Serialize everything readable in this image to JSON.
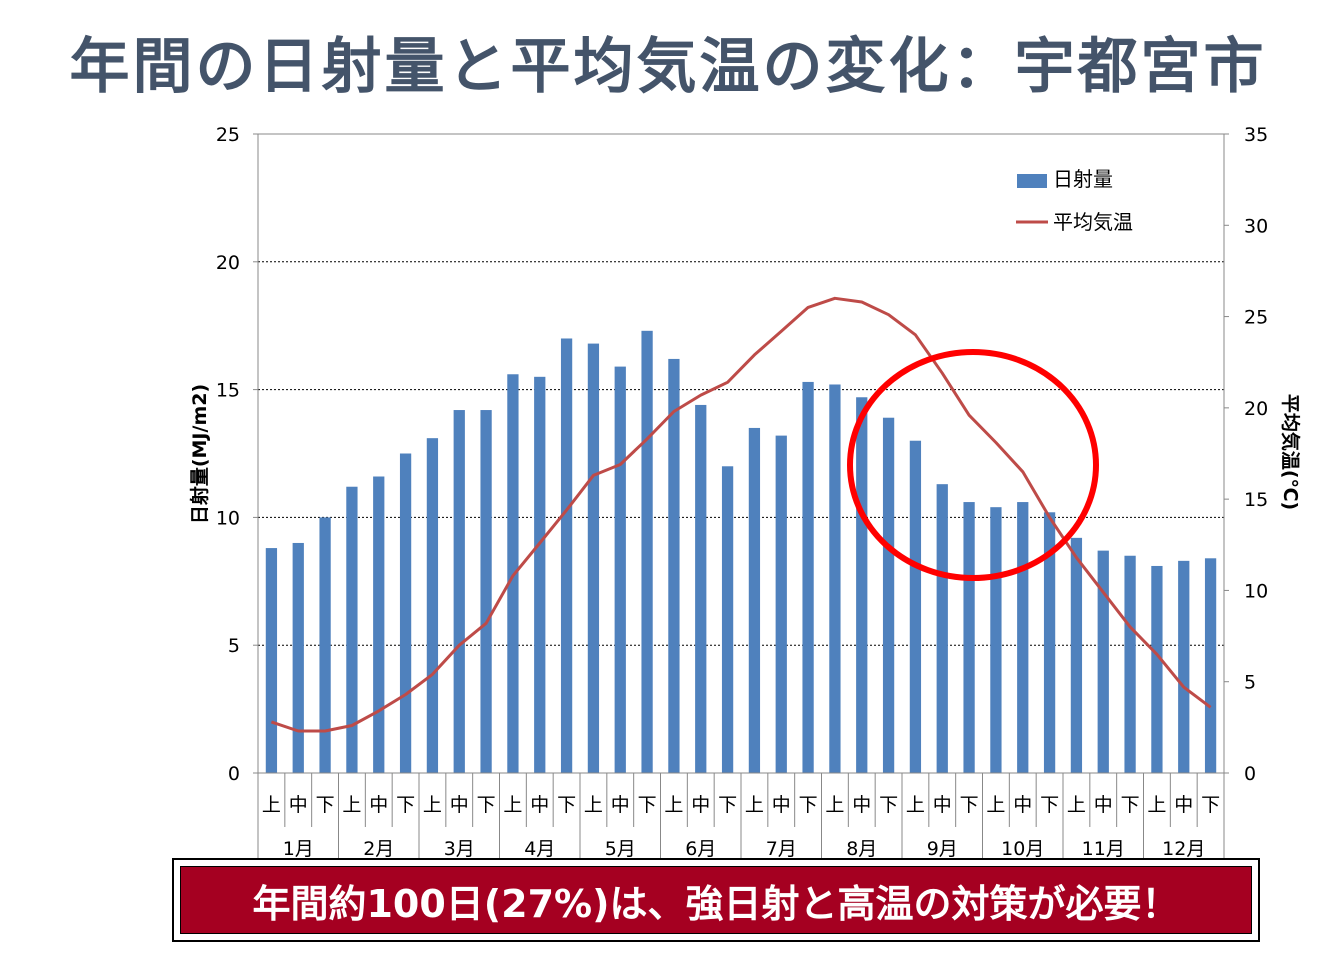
{
  "title": "年間の日射量と平均気温の変化：宇都宮市",
  "banner": "年間約100日(27%)は、強日射と高温の対策が必要！",
  "colors": {
    "title": "#44546a",
    "bar": "#4f81bd",
    "line": "#be4b48",
    "highlight_circle": "#ff0000",
    "banner_bg": "#a50021",
    "banner_text": "#ffffff"
  },
  "chart_data": {
    "type": "bar",
    "ylabel": "日射量(MJ/m2)",
    "y2label": "平均気温(℃)",
    "ylim": [
      0,
      25
    ],
    "y2lim": [
      0,
      35
    ],
    "yticks": [
      0,
      5,
      10,
      15,
      20,
      25
    ],
    "y2ticks": [
      0,
      5,
      10,
      15,
      20,
      25,
      30,
      35
    ],
    "grid": "dashed horizontal",
    "legend_position": "top-right",
    "categories": [
      "上",
      "中",
      "下",
      "上",
      "中",
      "下",
      "上",
      "中",
      "下",
      "上",
      "中",
      "下",
      "上",
      "中",
      "下",
      "上",
      "中",
      "下",
      "上",
      "中",
      "下",
      "上",
      "中",
      "下",
      "上",
      "中",
      "下",
      "上",
      "中",
      "下",
      "上",
      "中",
      "下",
      "上",
      "中",
      "下"
    ],
    "months": [
      "1月",
      "2月",
      "3月",
      "4月",
      "5月",
      "6月",
      "7月",
      "8月",
      "9月",
      "10月",
      "11月",
      "12月"
    ],
    "series": [
      {
        "name": "日射量",
        "kind": "bar",
        "axis": "left",
        "values": [
          8.8,
          9.0,
          10.0,
          11.2,
          11.6,
          12.5,
          13.1,
          14.2,
          14.2,
          15.6,
          15.5,
          17.0,
          16.8,
          15.9,
          17.3,
          16.2,
          14.4,
          12.0,
          13.5,
          13.2,
          15.3,
          15.2,
          14.7,
          13.9,
          13.0,
          11.3,
          10.6,
          10.4,
          10.6,
          10.2,
          9.2,
          8.7,
          8.5,
          8.1,
          8.3,
          8.4
        ]
      },
      {
        "name": "平均気温",
        "kind": "line",
        "axis": "right",
        "values": [
          2.8,
          2.3,
          2.3,
          2.6,
          3.4,
          4.3,
          5.4,
          7.0,
          8.2,
          10.8,
          12.6,
          14.4,
          16.3,
          16.9,
          18.3,
          19.8,
          20.7,
          21.4,
          22.9,
          24.2,
          25.5,
          26.0,
          25.8,
          25.1,
          24.0,
          21.9,
          19.6,
          18.1,
          16.5,
          14.0,
          11.8,
          9.9,
          8.0,
          6.5,
          4.7,
          3.6
        ]
      }
    ],
    "annotation": "red circle around 9月"
  }
}
